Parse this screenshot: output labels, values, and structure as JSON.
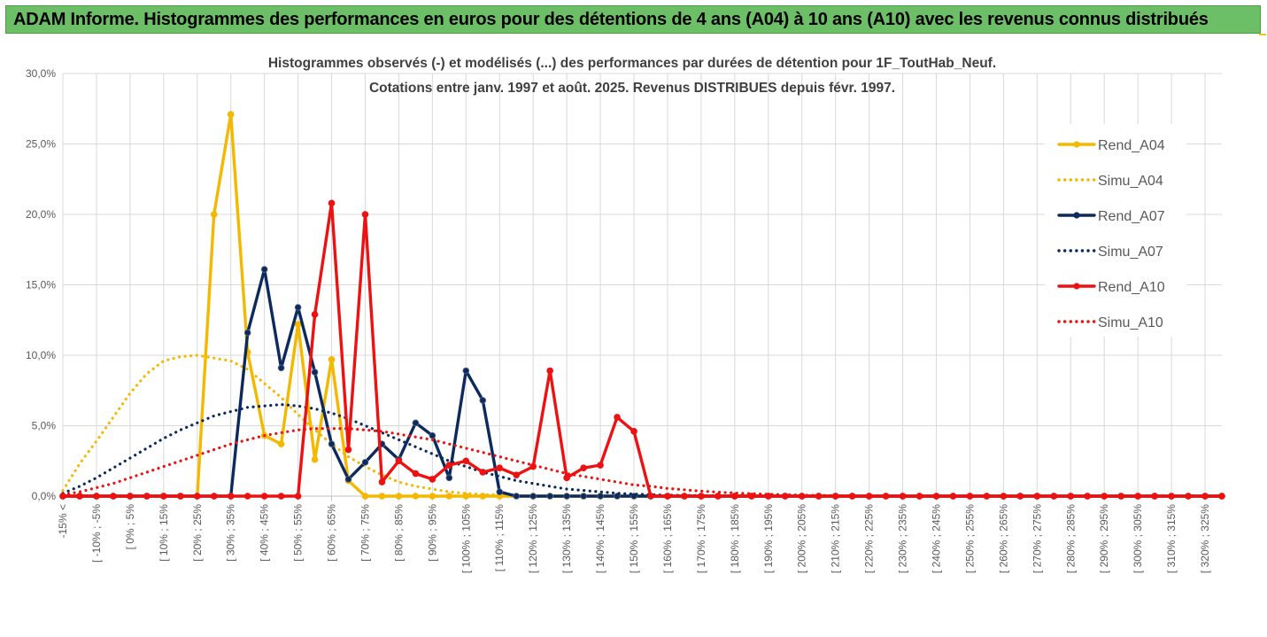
{
  "banner": {
    "title": "ADAM Informe. Histogrammes des performances en euros pour des détentions de 4 ans (A04) à 10 ans (A10) avec les revenus connus distribués"
  },
  "colors": {
    "banner_bg": "#6dbf67",
    "series_A04": "#f5b800",
    "series_A07": "#0d2a5e",
    "series_A10": "#ee1111",
    "grid": "#d9d9d9"
  },
  "chart_data": {
    "type": "line",
    "title_line1": "Histogrammes observés (-) et modélisés (...) des performances par durées de détention pour 1F_ToutHab_Neuf.",
    "title_line2": "Cotations entre janv. 1997 et août. 2025. Revenus DISTRIBUES depuis févr. 1997.",
    "xlabel": "",
    "ylabel": "",
    "ylim": [
      0,
      30
    ],
    "yticks": [
      "0,0%",
      "5,0%",
      "10,0%",
      "15,0%",
      "20,0%",
      "25,0%",
      "30,0%"
    ],
    "grid": true,
    "legend_position": "right",
    "x_labels": [
      "-15% <",
      "[ -10% ; -5%",
      "[ 0% ; 5%",
      "[ 10% ; 15%",
      "[ 20% ; 25%",
      "[ 30% ; 35%",
      "[ 40% ; 45%",
      "[ 50% ; 55%",
      "[ 60% ; 65%",
      "[ 70% ; 75%",
      "[ 80% ; 85%",
      "[ 90% ; 95%",
      "[ 100% ; 105%",
      "[ 110% ; 115%",
      "[ 120% ; 125%",
      "[ 130% ; 135%",
      "[ 140% ; 145%",
      "[ 150% ; 155%",
      "[ 160% ; 165%",
      "[ 170% ; 175%",
      "[ 180% ; 185%",
      "[ 190% ; 195%",
      "[ 200% ; 205%",
      "[ 210% ; 215%",
      "[ 220% ; 225%",
      "[ 230% ; 235%",
      "[ 240% ; 245%",
      "[ 250% ; 255%",
      "[ 260% ; 265%",
      "[ 270% ; 275%",
      "[ 280% ; 285%",
      "[ 290% ; 295%",
      "[ 300% ; 305%",
      "[ 310% ; 315%",
      "[ 320% ; 325%"
    ],
    "num_bins": 70,
    "series": [
      {
        "name": "Rend_A04",
        "style": "solid",
        "color": "#f5b800",
        "values": [
          0,
          0,
          0,
          0,
          0,
          0,
          0,
          0,
          0,
          20,
          27.1,
          10.2,
          4.3,
          3.7,
          12.2,
          2.6,
          9.7,
          1.1,
          0,
          0,
          0,
          0,
          0,
          0,
          0,
          0,
          0,
          0,
          0,
          0,
          0,
          0,
          0,
          0,
          0,
          0,
          0,
          0,
          0,
          0,
          0,
          0,
          0,
          0,
          0,
          0,
          0,
          0,
          0,
          0,
          0,
          0,
          0,
          0,
          0,
          0,
          0,
          0,
          0,
          0,
          0,
          0,
          0,
          0,
          0,
          0,
          0,
          0,
          0,
          0
        ]
      },
      {
        "name": "Simu_A04",
        "style": "dotted",
        "color": "#f5b800",
        "values": [
          0.4,
          2.3,
          3.9,
          5.6,
          7.3,
          8.7,
          9.6,
          9.9,
          10.0,
          9.8,
          9.6,
          9.0,
          8.0,
          7.0,
          5.8,
          4.7,
          3.7,
          2.8,
          2.1,
          1.5,
          1.0,
          0.7,
          0.5,
          0.3,
          0.2,
          0.1,
          0.1,
          0.05,
          0.02,
          0.01,
          0,
          0,
          0,
          0,
          0,
          0,
          0,
          0,
          0,
          0,
          0,
          0,
          0,
          0,
          0,
          0,
          0,
          0,
          0,
          0,
          0,
          0,
          0,
          0,
          0,
          0,
          0,
          0,
          0,
          0,
          0,
          0,
          0,
          0,
          0,
          0,
          0,
          0,
          0,
          0
        ]
      },
      {
        "name": "Rend_A07",
        "style": "solid",
        "color": "#0d2a5e",
        "values": [
          0,
          0,
          0,
          0,
          0,
          0,
          0,
          0,
          0,
          0,
          0,
          11.6,
          16.1,
          9.1,
          13.4,
          8.8,
          3.7,
          1.2,
          2.4,
          3.7,
          2.6,
          5.2,
          4.3,
          1.3,
          8.9,
          6.8,
          0.3,
          0,
          0,
          0,
          0,
          0,
          0,
          0,
          0,
          0,
          0,
          0,
          0,
          0,
          0,
          0,
          0,
          0,
          0,
          0,
          0,
          0,
          0,
          0,
          0,
          0,
          0,
          0,
          0,
          0,
          0,
          0,
          0,
          0,
          0,
          0,
          0,
          0,
          0,
          0,
          0,
          0,
          0,
          0
        ]
      },
      {
        "name": "Simu_A07",
        "style": "dotted",
        "color": "#0d2a5e",
        "values": [
          0.2,
          0.7,
          1.3,
          2.0,
          2.7,
          3.4,
          4.1,
          4.7,
          5.2,
          5.7,
          6.0,
          6.3,
          6.4,
          6.5,
          6.4,
          6.2,
          5.9,
          5.5,
          5.0,
          4.5,
          4.0,
          3.5,
          3.0,
          2.5,
          2.1,
          1.7,
          1.4,
          1.1,
          0.9,
          0.7,
          0.5,
          0.4,
          0.3,
          0.2,
          0.15,
          0.1,
          0.07,
          0.05,
          0.03,
          0.02,
          0.01,
          0,
          0,
          0,
          0,
          0,
          0,
          0,
          0,
          0,
          0,
          0,
          0,
          0,
          0,
          0,
          0,
          0,
          0,
          0,
          0,
          0,
          0,
          0,
          0,
          0,
          0,
          0,
          0,
          0
        ]
      },
      {
        "name": "Rend_A10",
        "style": "solid",
        "color": "#ee1111",
        "values": [
          0,
          0,
          0,
          0,
          0,
          0,
          0,
          0,
          0,
          0,
          0,
          0,
          0,
          0,
          0,
          12.9,
          20.8,
          3.3,
          20.0,
          1.0,
          2.5,
          1.6,
          1.2,
          2.2,
          2.5,
          1.7,
          2.0,
          1.5,
          2.1,
          8.9,
          1.3,
          2.0,
          2.2,
          5.6,
          4.6,
          0,
          0,
          0,
          0,
          0,
          0,
          0,
          0,
          0,
          0,
          0,
          0,
          0,
          0,
          0,
          0,
          0,
          0,
          0,
          0,
          0,
          0,
          0,
          0,
          0,
          0,
          0,
          0,
          0,
          0,
          0,
          0,
          0,
          0,
          0
        ]
      },
      {
        "name": "Simu_A10",
        "style": "dotted",
        "color": "#ee1111",
        "values": [
          0.1,
          0.3,
          0.6,
          0.9,
          1.3,
          1.7,
          2.1,
          2.5,
          2.9,
          3.3,
          3.7,
          4.0,
          4.3,
          4.5,
          4.7,
          4.8,
          4.8,
          4.8,
          4.7,
          4.6,
          4.4,
          4.2,
          4.0,
          3.7,
          3.4,
          3.1,
          2.8,
          2.5,
          2.2,
          1.9,
          1.6,
          1.4,
          1.2,
          1.0,
          0.8,
          0.7,
          0.55,
          0.45,
          0.35,
          0.28,
          0.22,
          0.17,
          0.13,
          0.1,
          0.07,
          0.05,
          0.04,
          0.03,
          0.02,
          0.01,
          0,
          0,
          0,
          0,
          0,
          0,
          0,
          0,
          0,
          0,
          0,
          0,
          0,
          0,
          0,
          0,
          0,
          0,
          0,
          0
        ]
      }
    ]
  }
}
